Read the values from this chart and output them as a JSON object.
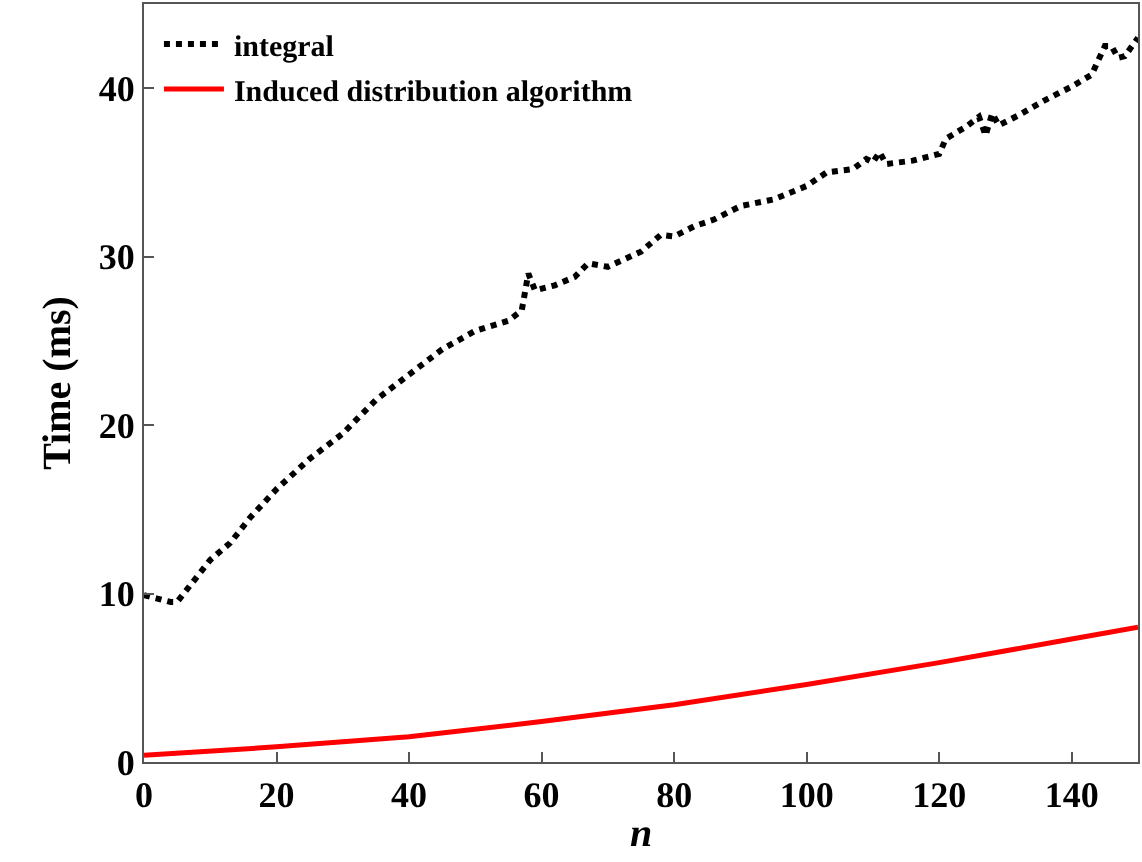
{
  "chart_data": {
    "type": "line",
    "xlabel": "n",
    "ylabel": "Time (ms)",
    "xlim": [
      0,
      150
    ],
    "xticks": [
      0,
      20,
      40,
      60,
      80,
      100,
      120,
      140
    ],
    "ylim": [
      0,
      45
    ],
    "yticks": [
      0,
      10,
      20,
      30,
      40
    ],
    "legend": "top left",
    "marker": "none",
    "series": [
      {
        "name": "integral",
        "color": "#000000",
        "line_style": "dotted",
        "x": [
          0,
          2,
          4,
          5,
          8,
          10,
          13,
          16,
          20,
          25,
          30,
          35,
          40,
          45,
          50,
          55,
          57,
          58,
          59,
          62,
          65,
          67,
          70,
          75,
          78,
          80,
          83,
          86,
          90,
          95,
          100,
          103,
          107,
          109,
          110,
          111,
          112,
          116,
          120,
          121,
          124,
          126,
          127,
          128,
          129,
          132,
          136,
          140,
          143,
          145,
          146,
          147,
          148,
          150
        ],
        "values": [
          9.9,
          9.7,
          9.5,
          9.5,
          11,
          12,
          13,
          14.5,
          16.2,
          18,
          19.5,
          21.5,
          23,
          24.5,
          25.6,
          26.2,
          26.8,
          29,
          28,
          28.3,
          28.8,
          29.6,
          29.4,
          30.3,
          31.3,
          31.2,
          31.8,
          32.2,
          33,
          33.4,
          34.2,
          35,
          35.2,
          35.8,
          35.6,
          36.2,
          35.5,
          35.7,
          36.1,
          37,
          37.7,
          38.3,
          37.2,
          38.5,
          37.8,
          38.4,
          39.3,
          40.1,
          40.8,
          42.5,
          42.5,
          41.8,
          41.9,
          43
        ]
      },
      {
        "name": "Induced distribution algorithm",
        "color": "#ff0000",
        "line_style": "solid",
        "x": [
          0,
          20,
          40,
          60,
          80,
          100,
          120,
          140,
          150
        ],
        "values": [
          0.4,
          0.9,
          1.5,
          2.4,
          3.4,
          4.6,
          5.9,
          7.3,
          8.0
        ]
      }
    ]
  }
}
